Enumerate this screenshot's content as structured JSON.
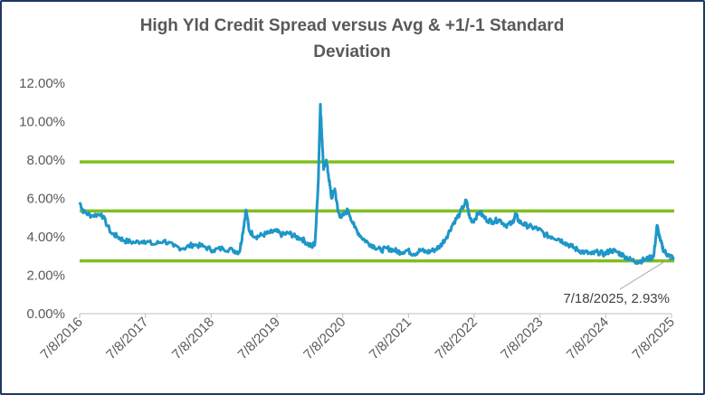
{
  "chart_data": {
    "type": "line",
    "title_line1": "High Yld Credit Spread versus Avg & +1/-1 Standard",
    "title_line2": "Deviation",
    "xlabel": "",
    "ylabel": "",
    "ylim": [
      0,
      12
    ],
    "y_ticks": [
      "0.00%",
      "2.00%",
      "4.00%",
      "6.00%",
      "8.00%",
      "10.00%",
      "12.00%"
    ],
    "y_tick_values": [
      0,
      2,
      4,
      6,
      8,
      10,
      12
    ],
    "x_ticks": [
      "7/8/2016",
      "7/8/2017",
      "7/8/2018",
      "7/8/2019",
      "7/8/2020",
      "7/8/2021",
      "7/8/2022",
      "7/8/2023",
      "7/8/2024",
      "7/8/2025"
    ],
    "grid": "none",
    "legend": "none",
    "colors": {
      "series": "#1e96c8",
      "bands": "#7fbf1f",
      "axis": "#bfbfbf",
      "frame": "#1f3864"
    },
    "series": [
      {
        "x": [
          2016.52,
          2016.58,
          2016.7,
          2016.85,
          2017.0,
          2017.1,
          2017.2,
          2017.35,
          2017.5,
          2017.65,
          2017.8,
          2017.95,
          2018.1,
          2018.25,
          2018.4,
          2018.55,
          2018.7,
          2018.85,
          2018.95,
          2019.0,
          2019.05,
          2019.1,
          2019.2,
          2019.3,
          2019.4,
          2019.5,
          2019.6,
          2019.7,
          2019.8,
          2019.9,
          2020.0,
          2020.05,
          2020.1,
          2020.15,
          2020.18,
          2020.2,
          2020.23,
          2020.27,
          2020.3,
          2020.35,
          2020.4,
          2020.45,
          2020.5,
          2020.6,
          2020.7,
          2020.8,
          2020.9,
          2021.0,
          2021.1,
          2021.2,
          2021.3,
          2021.4,
          2021.5,
          2021.6,
          2021.7,
          2021.8,
          2021.9,
          2022.0,
          2022.1,
          2022.2,
          2022.3,
          2022.4,
          2022.45,
          2022.5,
          2022.6,
          2022.7,
          2022.8,
          2022.9,
          2023.0,
          2023.1,
          2023.15,
          2023.2,
          2023.3,
          2023.4,
          2023.5,
          2023.6,
          2023.7,
          2023.8,
          2023.9,
          2024.0,
          2024.1,
          2024.2,
          2024.3,
          2024.4,
          2024.5,
          2024.6,
          2024.7,
          2024.8,
          2024.9,
          2025.0,
          2025.1,
          2025.2,
          2025.25,
          2025.3,
          2025.35,
          2025.4,
          2025.45,
          2025.5,
          2025.55
        ],
        "values": [
          5.8,
          5.3,
          5.1,
          5.2,
          4.2,
          4.0,
          3.8,
          3.7,
          3.8,
          3.6,
          3.8,
          3.5,
          3.4,
          3.6,
          3.5,
          3.3,
          3.4,
          3.3,
          3.2,
          4.2,
          5.4,
          4.3,
          4.0,
          4.1,
          4.2,
          4.3,
          4.1,
          4.2,
          4.0,
          3.9,
          3.6,
          3.5,
          3.7,
          7.0,
          10.9,
          9.5,
          7.5,
          8.0,
          7.3,
          6.0,
          6.5,
          5.3,
          5.0,
          5.4,
          4.5,
          4.0,
          3.7,
          3.5,
          3.3,
          3.4,
          3.3,
          3.2,
          3.3,
          3.1,
          3.3,
          3.2,
          3.3,
          3.5,
          4.0,
          4.7,
          5.2,
          5.9,
          5.0,
          4.8,
          5.3,
          4.9,
          4.8,
          4.9,
          4.6,
          4.7,
          5.2,
          4.8,
          4.6,
          4.5,
          4.4,
          4.1,
          4.0,
          3.9,
          3.7,
          3.5,
          3.3,
          3.2,
          3.1,
          3.2,
          3.1,
          3.3,
          3.2,
          3.0,
          2.8,
          2.7,
          2.8,
          2.9,
          3.0,
          4.6,
          3.8,
          3.3,
          3.1,
          2.95,
          2.93
        ]
      }
    ],
    "bands": [
      7.9,
      5.35,
      2.75
    ],
    "annotation": {
      "text": "7/18/2025, 2.93%",
      "x": 2025.55,
      "y": 2.93
    }
  }
}
